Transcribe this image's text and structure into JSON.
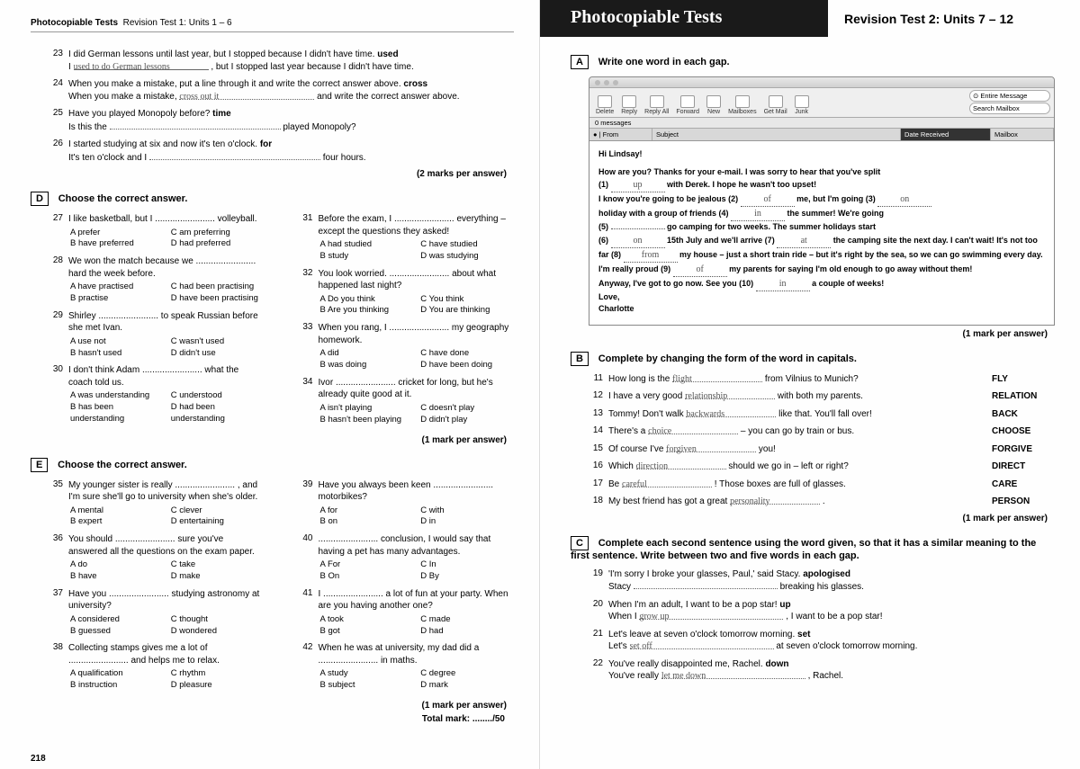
{
  "left": {
    "header": {
      "title": "Photocopiable Tests",
      "sub": "Revision Test 1: Units 1 – 6"
    },
    "pageNum": "218",
    "marks2": "(2 marks per answer)",
    "marks1": "(1 mark per answer)",
    "totalMark": "Total mark: ......../50",
    "q23": {
      "n": "23",
      "line1": "I did German lessons until last year, but I stopped because I didn't have time.",
      "kw": "used",
      "line2a": "I",
      "ans": "used to do German lessons",
      "line2b": ", but I stopped last year because I didn't have time."
    },
    "q24": {
      "n": "24",
      "line1": "When you make a mistake, put a line through it and write the correct answer above.",
      "kw": "cross",
      "line2a": "When you make a mistake,",
      "ans": "cross   out   it",
      "line2b": "and write the correct answer above."
    },
    "q25": {
      "n": "25",
      "line1": "Have you played Monopoly before?",
      "kw": "time",
      "line2a": "Is this the",
      "line2b": "played Monopoly?"
    },
    "q26": {
      "n": "26",
      "line1": "I started studying at six and now it's ten o'clock.",
      "kw": "for",
      "line2a": "It's ten o'clock and I",
      "line2b": "four hours."
    },
    "D": {
      "label": "D",
      "title": "Choose the correct answer."
    },
    "d_left": [
      {
        "n": "27",
        "q": "I like basketball, but I ........................ volleyball.",
        "opts": [
          "A prefer",
          "C am preferring",
          "B have preferred",
          "D had preferred"
        ],
        "mark": "A"
      },
      {
        "n": "28",
        "q": "We won the match because we ........................ hard the week before.",
        "opts": [
          "A have practised",
          "C had been practising",
          "B practise",
          "D have been practising"
        ],
        "mark": ""
      },
      {
        "n": "29",
        "q": "Shirley ........................ to speak Russian before she met Ivan.",
        "opts": [
          "A use not",
          "C wasn't used",
          "B hasn't used",
          "D didn't use"
        ],
        "mark": ""
      },
      {
        "n": "30",
        "q": "I don't think Adam ........................ what the coach told us.",
        "opts": [
          "A was understanding",
          "C understood",
          "B has been understanding",
          "D had been understanding"
        ],
        "mark": ""
      }
    ],
    "d_right": [
      {
        "n": "31",
        "q": "Before the exam, I ........................ everything – except the questions they asked!",
        "opts": [
          "A had studied",
          "C have studied",
          "B study",
          "D was studying"
        ]
      },
      {
        "n": "32",
        "q": "You look worried. ........................ about what happened last night?",
        "opts": [
          "A Do you think",
          "C You think",
          "B Are you thinking",
          "D You are thinking"
        ]
      },
      {
        "n": "33",
        "q": "When you rang, I ........................ my geography homework.",
        "opts": [
          "A did",
          "C have done",
          "B was doing",
          "D have been doing"
        ]
      },
      {
        "n": "34",
        "q": "Ivor ........................ cricket for long, but he's already quite good at it.",
        "opts": [
          "A isn't playing",
          "C doesn't play",
          "B hasn't been playing",
          "D didn't play"
        ]
      }
    ],
    "E": {
      "label": "E",
      "title": "Choose the correct answer."
    },
    "e_left": [
      {
        "n": "35",
        "q": "My younger sister is really ........................ , and I'm sure she'll go to university when she's older.",
        "opts": [
          "A mental",
          "C clever",
          "B expert",
          "D entertaining"
        ]
      },
      {
        "n": "36",
        "q": "You should ........................ sure you've answered all the questions on the exam paper.",
        "opts": [
          "A do",
          "C take",
          "B have",
          "D make"
        ]
      },
      {
        "n": "37",
        "q": "Have you ........................ studying astronomy at university?",
        "opts": [
          "A considered",
          "C thought",
          "B guessed",
          "D wondered"
        ]
      },
      {
        "n": "38",
        "q": "Collecting stamps gives me a lot of ........................ and helps me to relax.",
        "opts": [
          "A qualification",
          "C rhythm",
          "B instruction",
          "D pleasure"
        ]
      }
    ],
    "e_right": [
      {
        "n": "39",
        "q": "Have you always been keen ........................ motorbikes?",
        "opts": [
          "A for",
          "C with",
          "B on",
          "D in"
        ]
      },
      {
        "n": "40",
        "q": "........................ conclusion, I would say that having a pet has many advantages.",
        "opts": [
          "A For",
          "C In",
          "B On",
          "D By"
        ]
      },
      {
        "n": "41",
        "q": "I ........................ a lot of fun at your party. When are you having another one?",
        "opts": [
          "A took",
          "C made",
          "B got",
          "D had"
        ]
      },
      {
        "n": "42",
        "q": "When he was at university, my dad did a ........................ in maths.",
        "opts": [
          "A study",
          "C degree",
          "B subject",
          "D mark"
        ]
      }
    ]
  },
  "right": {
    "header": {
      "title": "Photocopiable Tests",
      "sub": "Revision Test 2: Units 7 – 12"
    },
    "A": {
      "label": "A",
      "title": "Write one word in each gap."
    },
    "email": {
      "toolbar": [
        "Delete",
        "Reply",
        "Reply All",
        "Forward",
        "New",
        "Mailboxes",
        "Get Mail",
        "Junk"
      ],
      "search1": "⊙ Entire Message",
      "search2": "Search Mailbox",
      "msgcount": "0 messages",
      "cols": [
        "● | From",
        "Subject",
        "Date Received",
        "Mailbox"
      ],
      "greeting": "Hi Lindsay!",
      "p1a": "How are you? Thanks for your e-mail. I was sorry to hear that you've split",
      "g1": "up",
      "p1b": " with Derek. I hope he wasn't too upset!",
      "p2a": "I know you're going to be jealous (2) ",
      "g2": "of",
      "p2b": " me, but I'm going (3) ",
      "g3": "on",
      "p2c": " holiday with a group of friends (4) ",
      "g4": "in",
      "p2d": " the summer! We're going",
      "p3a": "(5) ",
      "g5": "",
      "p3b": " go camping for two weeks. The summer holidays start",
      "p4a": "(6) ",
      "g6": "on",
      "p4b": " 15th July and we'll arrive (7) ",
      "g7": "at",
      "p4c": " the camping site the next day. I can't wait! It's not too far (8) ",
      "g8": "from",
      "p4d": " my house – just a short train ride – but it's right by the sea, so we can go swimming every day. I'm really proud (9) ",
      "g9": "of",
      "p4e": " my parents for saying I'm old enough to go away without them!",
      "p5a": "Anyway, I've got to go now. See you (10) ",
      "g10": "in",
      "p5b": " a couple of weeks!",
      "sign1": "Love,",
      "sign2": "Charlotte"
    },
    "marks1": "(1 mark per answer)",
    "B": {
      "label": "B",
      "title": "Complete by changing the form of the word in capitals."
    },
    "b_items": [
      {
        "n": "11",
        "q": "How long is the",
        "ans": "flight",
        "q2": "from Vilnius to Munich?",
        "cap": "FLY"
      },
      {
        "n": "12",
        "q": "I have a very good",
        "ans": "relationship",
        "q2": "with both my parents.",
        "cap": "RELATION"
      },
      {
        "n": "13",
        "q": "Tommy! Don't walk",
        "ans": "backwards",
        "q2": "like that. You'll fall over!",
        "cap": "BACK"
      },
      {
        "n": "14",
        "q": "There's a",
        "ans": "choice",
        "q2": "– you can go by train or bus.",
        "cap": "CHOOSE"
      },
      {
        "n": "15",
        "q": "Of course I've",
        "ans": "forgiven",
        "q2": "you!",
        "cap": "FORGIVE"
      },
      {
        "n": "16",
        "q": "Which",
        "ans": "direction",
        "q2": "should we go in – left or right?",
        "cap": "DIRECT"
      },
      {
        "n": "17",
        "q": "Be",
        "ans": "careful",
        "q2": "! Those boxes are full of glasses.",
        "cap": "CARE"
      },
      {
        "n": "18",
        "q": "My best friend has got a great",
        "ans": "personality",
        "q2": ".",
        "cap": "PERSON"
      }
    ],
    "C": {
      "label": "C",
      "title": "Complete each second sentence using the word given, so that it has a similar meaning to the first sentence. Write between two and five words in each gap."
    },
    "c_items": [
      {
        "n": "19",
        "l1": "'I'm sorry I broke your glasses, Paul,' said Stacy.",
        "kw": "apologised",
        "l2a": "Stacy",
        "ans": "",
        "l2b": "breaking his glasses."
      },
      {
        "n": "20",
        "l1": "When I'm an adult, I want to be a pop star!",
        "kw": "up",
        "l2a": "When I",
        "ans": "grow  up",
        "l2b": ", I want to be a pop star!"
      },
      {
        "n": "21",
        "l1": "Let's leave at seven o'clock tomorrow morning.",
        "kw": "set",
        "l2a": "Let's",
        "ans": "set  off",
        "l2b": "at seven o'clock tomorrow morning."
      },
      {
        "n": "22",
        "l1": "You've really disappointed me, Rachel.",
        "kw": "down",
        "l2a": "You've really",
        "ans": "let me down",
        "l2b": ", Rachel."
      }
    ]
  }
}
